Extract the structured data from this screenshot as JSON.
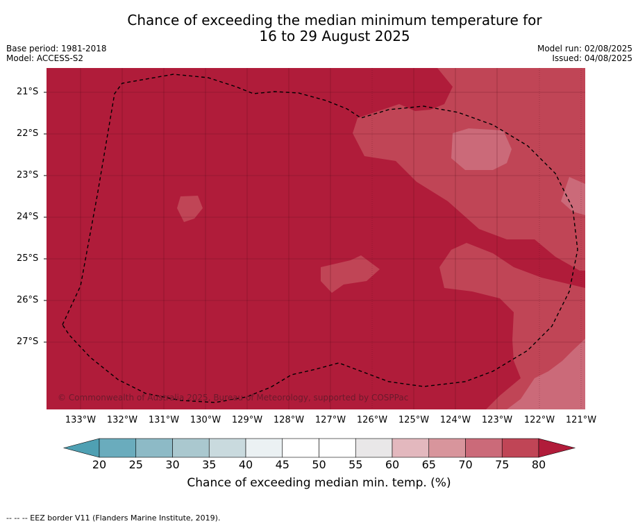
{
  "title_line1": "Chance of exceeding the median minimum temperature for",
  "title_line2": "16 to 29 August 2025",
  "base_period": "Base period: 1981-2018",
  "model": "Model: ACCESS-S2",
  "model_run": "Model run: 02/08/2025",
  "issued": "Issued: 04/08/2025",
  "copyright": "© Commonwealth of Australia 2025, Bureau of Meteorology, supported by COSPPac",
  "footer": "--  --  -- EEZ border V11 (Flanders Marine Institute, 2019).",
  "y_labels": [
    "21°S",
    "22°S",
    "23°S",
    "24°S",
    "25°S",
    "26°S",
    "27°S"
  ],
  "x_labels": [
    "133°W",
    "132°W",
    "131°W",
    "130°W",
    "129°W",
    "128°W",
    "127°W",
    "126°W",
    "125°W",
    "124°W",
    "123°W",
    "122°W",
    "121°W"
  ],
  "colorbar": {
    "label": "Chance of exceeding median min. temp. (%)",
    "ticks": [
      "20",
      "25",
      "30",
      "35",
      "40",
      "45",
      "50",
      "55",
      "60",
      "65",
      "70",
      "75",
      "80"
    ],
    "colors": [
      "#6aacbd",
      "#8dbac6",
      "#aac8cf",
      "#c9dade",
      "#ebf1f3",
      "#ffffff",
      "#ffffff",
      "#e9e7e8",
      "#e3b8be",
      "#d8959c",
      "#cb6a79",
      "#c04556"
    ],
    "low_extend_color": "#4fa0b3",
    "high_extend_color": "#b11c3a"
  },
  "map_colors": {
    "above_80": "#b01c3a",
    "c75_80": "#c04556",
    "c70_75": "#cb6a79"
  }
}
